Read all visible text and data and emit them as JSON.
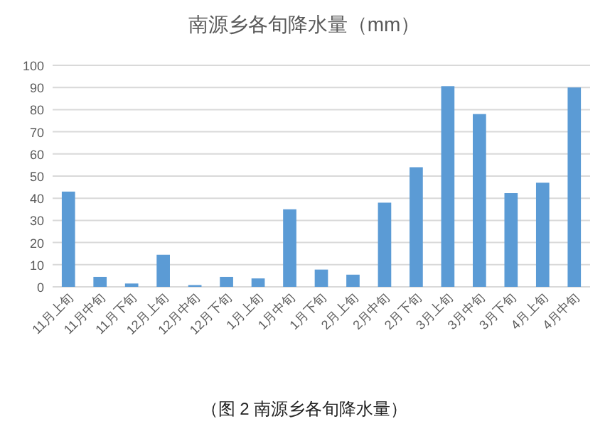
{
  "chart_data": {
    "type": "bar",
    "title": "南源乡各旬降水量（mm）",
    "categories": [
      "11月上旬",
      "11月中旬",
      "11月下旬",
      "12月上旬",
      "12月中旬",
      "12月下旬",
      "1月上旬",
      "1月中旬",
      "1月下旬",
      "2月上旬",
      "2月中旬",
      "2月下旬",
      "3月上旬",
      "3月中旬",
      "3月下旬",
      "4月上旬",
      "4月中旬"
    ],
    "values": [
      43,
      4.5,
      1.5,
      14.5,
      0.8,
      4.5,
      3.8,
      35,
      7.8,
      5.5,
      38,
      54,
      90.6,
      78,
      42.3,
      47,
      90
    ],
    "color": "#5b9bd5",
    "ylim": [
      0,
      100
    ],
    "yticks": [
      0,
      10,
      20,
      30,
      40,
      50,
      60,
      70,
      80,
      90,
      100
    ],
    "grid": "y",
    "annotations": [
      "（图 2 南源乡各旬降水量）"
    ]
  }
}
